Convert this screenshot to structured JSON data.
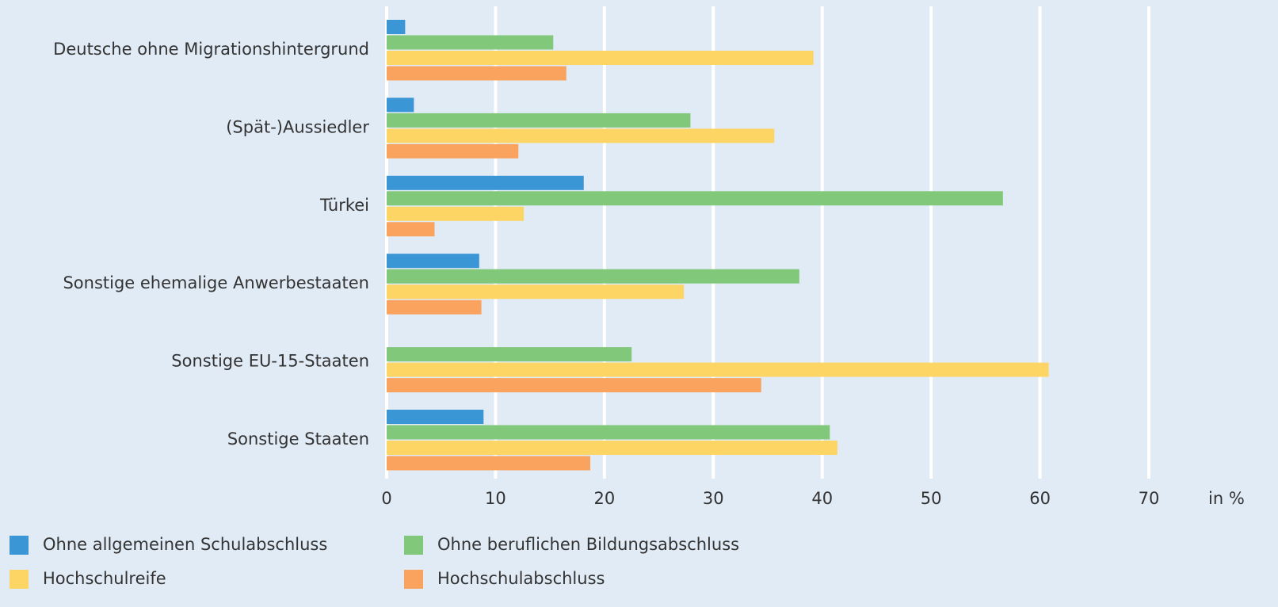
{
  "chart_data": {
    "type": "barh",
    "categories": [
      "Deutsche ohne Migrationshintergrund",
      "(Spät-)Aussiedler",
      "Türkei",
      "Sonstige ehemalige Anwerbestaaten",
      "Sonstige EU-15-Staaten",
      "Sonstige Staaten"
    ],
    "series": [
      {
        "name": "Ohne allgemeinen Schulabschluss",
        "color": "#3a96d4",
        "values": [
          1.7,
          2.5,
          18.1,
          8.5,
          null,
          8.9
        ]
      },
      {
        "name": "Ohne beruflichen Bildungsabschluss",
        "color": "#82c87a",
        "values": [
          15.3,
          27.9,
          56.6,
          37.9,
          22.5,
          40.7
        ]
      },
      {
        "name": "Hochschulreife",
        "color": "#fdd565",
        "values": [
          39.2,
          35.6,
          12.6,
          27.3,
          60.8,
          41.4
        ]
      },
      {
        "name": "Hochschulabschluss",
        "color": "#f9a35e",
        "values": [
          16.5,
          12.1,
          4.4,
          8.7,
          34.4,
          18.7
        ]
      }
    ],
    "x_label": "in %",
    "xlim": [
      0,
      70
    ],
    "xticks": [
      0,
      10,
      20,
      30,
      40,
      50,
      60,
      70
    ],
    "grid": true
  }
}
